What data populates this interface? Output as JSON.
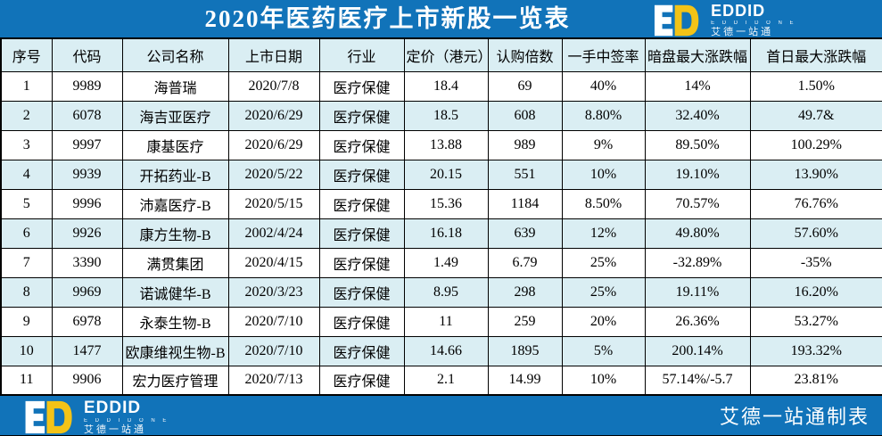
{
  "header": {
    "title": "2020年医药医疗上市新股一览表"
  },
  "logo": {
    "main": "EDDID",
    "sub": "E D D I D   O N E",
    "cn": "艾德一站通"
  },
  "chart_data": {
    "type": "table",
    "title": "2020年医药医疗上市新股一览表",
    "columns": [
      "序号",
      "代码",
      "公司名称",
      "上市日期",
      "行业",
      "定价（港元）",
      "认购倍数",
      "一手中签率",
      "暗盘最大涨跌幅",
      "首日最大涨跌幅"
    ],
    "rows": [
      [
        "1",
        "9989",
        "海普瑞",
        "2020/7/8",
        "医疗保健",
        "18.4",
        "69",
        "40%",
        "14%",
        "1.50%"
      ],
      [
        "2",
        "6078",
        "海吉亚医疗",
        "2020/6/29",
        "医疗保健",
        "18.5",
        "608",
        "8.80%",
        "32.40%",
        "49.7&"
      ],
      [
        "3",
        "9997",
        "康基医疗",
        "2020/6/29",
        "医疗保健",
        "13.88",
        "989",
        "9%",
        "89.50%",
        "100.29%"
      ],
      [
        "4",
        "9939",
        "开拓药业-B",
        "2020/5/22",
        "医疗保健",
        "20.15",
        "551",
        "10%",
        "19.10%",
        "13.90%"
      ],
      [
        "5",
        "9996",
        "沛嘉医疗-B",
        "2020/5/15",
        "医疗保健",
        "15.36",
        "1184",
        "8.50%",
        "70.57%",
        "76.76%"
      ],
      [
        "6",
        "9926",
        "康方生物-B",
        "2002/4/24",
        "医疗保健",
        "16.18",
        "639",
        "12%",
        "49.80%",
        "57.60%"
      ],
      [
        "7",
        "3390",
        "满贯集团",
        "2020/4/15",
        "医疗保健",
        "1.49",
        "6.79",
        "25%",
        "-32.89%",
        "-35%"
      ],
      [
        "8",
        "9969",
        "诺诚健华-B",
        "2020/3/23",
        "医疗保健",
        "8.95",
        "298",
        "25%",
        "19.11%",
        "16.20%"
      ],
      [
        "9",
        "6978",
        "永泰生物-B",
        "2020/7/10",
        "医疗保健",
        "11",
        "259",
        "20%",
        "26.36%",
        "53.27%"
      ],
      [
        "10",
        "1477",
        "欧康维视生物-B",
        "2020/7/10",
        "医疗保健",
        "14.66",
        "1895",
        "5%",
        "200.14%",
        "193.32%"
      ],
      [
        "11",
        "9906",
        "宏力医疗管理",
        "2020/7/13",
        "医疗保健",
        "2.1",
        "14.99",
        "10%",
        "57.14%/-5.7",
        "23.81%"
      ]
    ]
  },
  "footer": {
    "credit": "艾德一站通制表"
  },
  "colors": {
    "primary_blue": "#1173b9",
    "alt_row_blue": "#daeef3",
    "logo_yellow": "#f3c317",
    "border_black": "#000000",
    "title_text": "#ffffff"
  }
}
